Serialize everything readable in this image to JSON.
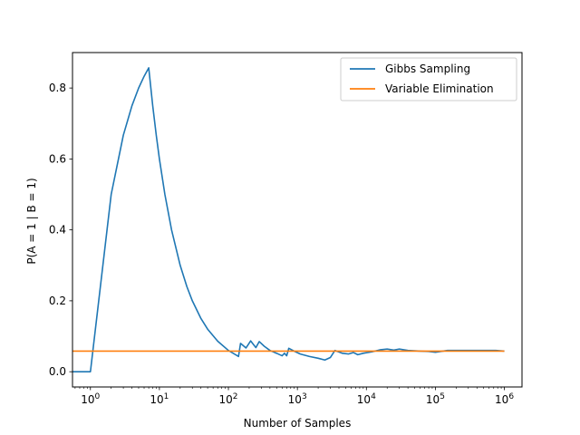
{
  "chart_data": {
    "type": "line",
    "title": "",
    "xlabel": "Number of Samples",
    "ylabel": "P(A = 1 | B = 1)",
    "xscale": "log",
    "xlim": [
      0.55,
      1800000
    ],
    "ylim": [
      -0.043,
      0.9
    ],
    "grid": false,
    "legend_position": "top-right",
    "x_ticks": [
      {
        "value": 1,
        "base": "10",
        "exp": "0"
      },
      {
        "value": 10,
        "base": "10",
        "exp": "1"
      },
      {
        "value": 100,
        "base": "10",
        "exp": "2"
      },
      {
        "value": 1000,
        "base": "10",
        "exp": "3"
      },
      {
        "value": 10000,
        "base": "10",
        "exp": "4"
      },
      {
        "value": 100000,
        "base": "10",
        "exp": "5"
      },
      {
        "value": 1000000,
        "base": "10",
        "exp": "6"
      }
    ],
    "y_ticks": [
      {
        "value": 0.0,
        "label": "0.0"
      },
      {
        "value": 0.2,
        "label": "0.2"
      },
      {
        "value": 0.4,
        "label": "0.4"
      },
      {
        "value": 0.6,
        "label": "0.6"
      },
      {
        "value": 0.8,
        "label": "0.8"
      }
    ],
    "series": [
      {
        "name": "Gibbs Sampling",
        "color": "#1f77b4",
        "points": [
          [
            0.55,
            0.0
          ],
          [
            1.0,
            0.0
          ],
          [
            2.0,
            0.5
          ],
          [
            3.0,
            0.667
          ],
          [
            4.0,
            0.75
          ],
          [
            5.0,
            0.8
          ],
          [
            6.0,
            0.833
          ],
          [
            7.0,
            0.857
          ],
          [
            8.0,
            0.75
          ],
          [
            9.0,
            0.667
          ],
          [
            10.0,
            0.6
          ],
          [
            12.0,
            0.5
          ],
          [
            15.0,
            0.4
          ],
          [
            20.0,
            0.3
          ],
          [
            25.0,
            0.24
          ],
          [
            30.0,
            0.2
          ],
          [
            40.0,
            0.15
          ],
          [
            50.0,
            0.12
          ],
          [
            70.0,
            0.086
          ],
          [
            100.0,
            0.06
          ],
          [
            140.0,
            0.043
          ],
          [
            150.0,
            0.08
          ],
          [
            180.0,
            0.067
          ],
          [
            210.0,
            0.087
          ],
          [
            250.0,
            0.068
          ],
          [
            280.0,
            0.085
          ],
          [
            330.0,
            0.072
          ],
          [
            400.0,
            0.06
          ],
          [
            500.0,
            0.052
          ],
          [
            600.0,
            0.045
          ],
          [
            650.0,
            0.052
          ],
          [
            700.0,
            0.045
          ],
          [
            750.0,
            0.066
          ],
          [
            900.0,
            0.058
          ],
          [
            1100.0,
            0.05
          ],
          [
            1500.0,
            0.043
          ],
          [
            2000.0,
            0.038
          ],
          [
            2500.0,
            0.033
          ],
          [
            3000.0,
            0.04
          ],
          [
            3500.0,
            0.06
          ],
          [
            4500.0,
            0.052
          ],
          [
            5500.0,
            0.05
          ],
          [
            6500.0,
            0.054
          ],
          [
            7500.0,
            0.048
          ],
          [
            9000.0,
            0.052
          ],
          [
            12000.0,
            0.056
          ],
          [
            16000.0,
            0.062
          ],
          [
            20000.0,
            0.064
          ],
          [
            25000.0,
            0.061
          ],
          [
            30000.0,
            0.064
          ],
          [
            40000.0,
            0.06
          ],
          [
            60000.0,
            0.058
          ],
          [
            80000.0,
            0.057
          ],
          [
            100000.0,
            0.055
          ],
          [
            150000.0,
            0.06
          ],
          [
            250000.0,
            0.06
          ],
          [
            400000.0,
            0.06
          ],
          [
            750000.0,
            0.06
          ],
          [
            1000000.0,
            0.058
          ]
        ]
      },
      {
        "name": "Variable Elimination",
        "color": "#ff7f0e",
        "points": [
          [
            0.55,
            0.058
          ],
          [
            1000000.0,
            0.058
          ]
        ]
      }
    ]
  }
}
